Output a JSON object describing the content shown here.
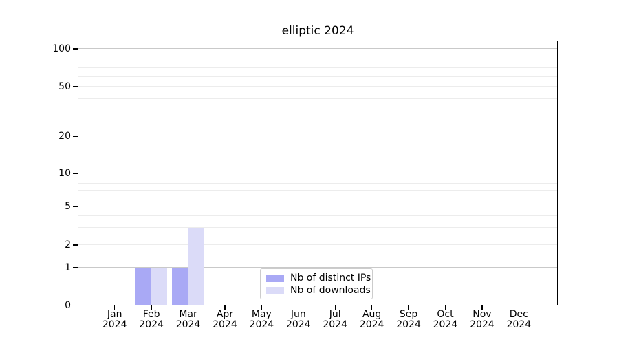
{
  "chart_data": {
    "type": "bar",
    "title": "elliptic 2024",
    "categories": [
      {
        "month": "Jan",
        "year": "2024"
      },
      {
        "month": "Feb",
        "year": "2024"
      },
      {
        "month": "Mar",
        "year": "2024"
      },
      {
        "month": "Apr",
        "year": "2024"
      },
      {
        "month": "May",
        "year": "2024"
      },
      {
        "month": "Jun",
        "year": "2024"
      },
      {
        "month": "Jul",
        "year": "2024"
      },
      {
        "month": "Aug",
        "year": "2024"
      },
      {
        "month": "Sep",
        "year": "2024"
      },
      {
        "month": "Oct",
        "year": "2024"
      },
      {
        "month": "Nov",
        "year": "2024"
      },
      {
        "month": "Dec",
        "year": "2024"
      }
    ],
    "series": [
      {
        "name": "Nb of distinct IPs",
        "color": "#a9a9f5",
        "values": [
          0,
          1,
          1,
          0,
          0,
          0,
          0,
          0,
          0,
          0,
          0,
          0
        ]
      },
      {
        "name": "Nb of downloads",
        "color": "#dbdbf8",
        "values": [
          0,
          1,
          3,
          0,
          0,
          0,
          0,
          0,
          0,
          0,
          0,
          0
        ]
      }
    ],
    "y_ticks": [
      0,
      1,
      2,
      5,
      10,
      20,
      50,
      100
    ],
    "y_minor_gridlines": [
      3,
      4,
      6,
      7,
      8,
      9,
      30,
      40,
      60,
      70,
      80,
      90
    ],
    "y_scale": "symlog-like",
    "grid": true,
    "legend_position": "lower center",
    "colors": {
      "decade_gridline": "#c9c9c9",
      "minor_gridline": "#ececec",
      "axis": "#000000",
      "background": "#ffffff"
    }
  }
}
